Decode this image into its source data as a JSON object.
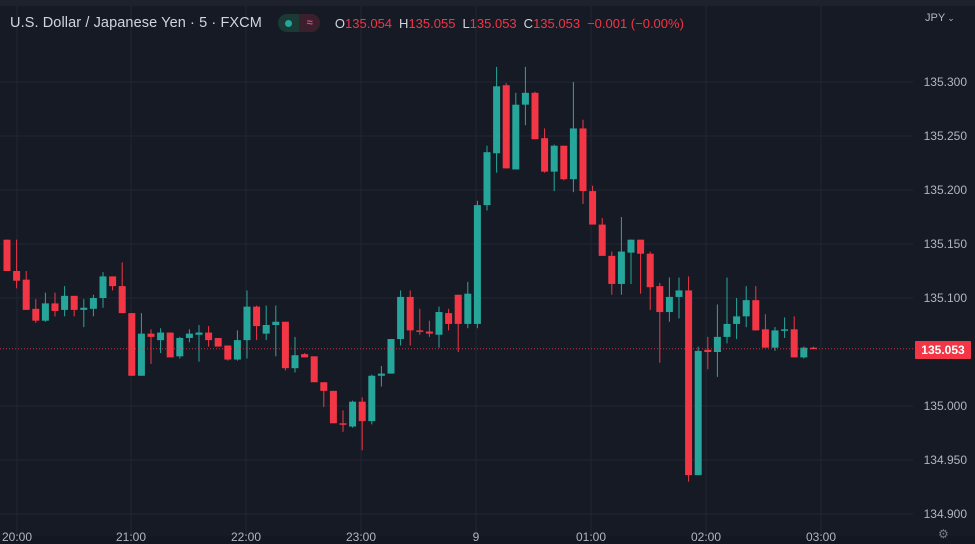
{
  "header": {
    "symbol_title": "U.S. Dollar / Japanese Yen · 5 · FXCM",
    "status_icons": [
      "market-open-dot-icon",
      "waves-icon"
    ],
    "ohlc": {
      "o_label": "O",
      "o_value": "135.054",
      "h_label": "H",
      "h_value": "135.055",
      "l_label": "L",
      "l_value": "135.053",
      "c_label": "C",
      "c_value": "135.053",
      "change": "−0.001 (−0.00%)"
    }
  },
  "price_axis": {
    "currency": "JPY",
    "currency_icon": "chevron-down-icon",
    "labels": [
      "135.300",
      "135.250",
      "135.200",
      "135.150",
      "135.100",
      "135.000",
      "134.950",
      "134.900"
    ],
    "last_price": "135.053"
  },
  "time_axis": {
    "labels": [
      "20:00",
      "21:00",
      "22:00",
      "23:00",
      "9",
      "01:00",
      "02:00",
      "03:00"
    ],
    "settings_icon": "gear-icon"
  },
  "colors": {
    "background": "#161a25",
    "grid": "#232632",
    "up": "#26a69a",
    "down": "#f23645",
    "text": "#b2b5be",
    "last_price_line": "#f23645"
  },
  "chart_data": {
    "type": "candlestick",
    "title": "U.S. Dollar / Japanese Yen · 5 · FXCM",
    "interval": "5",
    "xlabel": "",
    "ylabel": "JPY",
    "ylim": [
      134.895,
      135.375
    ],
    "yticks": [
      134.9,
      134.95,
      135.0,
      135.1,
      135.15,
      135.2,
      135.25,
      135.3
    ],
    "xticks": [
      "20:00",
      "21:00",
      "22:00",
      "23:00",
      "9",
      "01:00",
      "02:00",
      "03:00"
    ],
    "grid": true,
    "last_price": 135.053,
    "candles": [
      {
        "o": 135.154,
        "h": 135.154,
        "l": 135.125,
        "c": 135.125
      },
      {
        "o": 135.125,
        "h": 135.154,
        "l": 135.109,
        "c": 135.116
      },
      {
        "o": 135.117,
        "h": 135.125,
        "l": 135.089,
        "c": 135.089
      },
      {
        "o": 135.09,
        "h": 135.099,
        "l": 135.077,
        "c": 135.079
      },
      {
        "o": 135.079,
        "h": 135.105,
        "l": 135.078,
        "c": 135.095
      },
      {
        "o": 135.095,
        "h": 135.105,
        "l": 135.083,
        "c": 135.088
      },
      {
        "o": 135.089,
        "h": 135.111,
        "l": 135.083,
        "c": 135.102
      },
      {
        "o": 135.102,
        "h": 135.102,
        "l": 135.083,
        "c": 135.089
      },
      {
        "o": 135.089,
        "h": 135.099,
        "l": 135.073,
        "c": 135.091
      },
      {
        "o": 135.09,
        "h": 135.103,
        "l": 135.083,
        "c": 135.1
      },
      {
        "o": 135.1,
        "h": 135.124,
        "l": 135.091,
        "c": 135.12
      },
      {
        "o": 135.12,
        "h": 135.12,
        "l": 135.107,
        "c": 135.111
      },
      {
        "o": 135.111,
        "h": 135.133,
        "l": 135.086,
        "c": 135.086
      },
      {
        "o": 135.086,
        "h": 135.086,
        "l": 135.028,
        "c": 135.028
      },
      {
        "o": 135.028,
        "h": 135.086,
        "l": 135.028,
        "c": 135.067
      },
      {
        "o": 135.067,
        "h": 135.071,
        "l": 135.039,
        "c": 135.064
      },
      {
        "o": 135.061,
        "h": 135.072,
        "l": 135.049,
        "c": 135.068
      },
      {
        "o": 135.068,
        "h": 135.068,
        "l": 135.046,
        "c": 135.045
      },
      {
        "o": 135.046,
        "h": 135.064,
        "l": 135.044,
        "c": 135.063
      },
      {
        "o": 135.063,
        "h": 135.071,
        "l": 135.059,
        "c": 135.067
      },
      {
        "o": 135.066,
        "h": 135.075,
        "l": 135.041,
        "c": 135.068
      },
      {
        "o": 135.068,
        "h": 135.074,
        "l": 135.055,
        "c": 135.061
      },
      {
        "o": 135.063,
        "h": 135.063,
        "l": 135.055,
        "c": 135.055
      },
      {
        "o": 135.056,
        "h": 135.056,
        "l": 135.042,
        "c": 135.043
      },
      {
        "o": 135.043,
        "h": 135.07,
        "l": 135.042,
        "c": 135.061
      },
      {
        "o": 135.061,
        "h": 135.107,
        "l": 135.044,
        "c": 135.092
      },
      {
        "o": 135.092,
        "h": 135.093,
        "l": 135.061,
        "c": 135.074
      },
      {
        "o": 135.067,
        "h": 135.093,
        "l": 135.061,
        "c": 135.075
      },
      {
        "o": 135.075,
        "h": 135.093,
        "l": 135.046,
        "c": 135.078
      },
      {
        "o": 135.078,
        "h": 135.078,
        "l": 135.033,
        "c": 135.035
      },
      {
        "o": 135.035,
        "h": 135.064,
        "l": 135.031,
        "c": 135.047
      },
      {
        "o": 135.048,
        "h": 135.049,
        "l": 135.046,
        "c": 135.045
      },
      {
        "o": 135.046,
        "h": 135.046,
        "l": 135.022,
        "c": 135.022
      },
      {
        "o": 135.022,
        "h": 135.022,
        "l": 134.999,
        "c": 135.014
      },
      {
        "o": 135.014,
        "h": 135.014,
        "l": 134.984,
        "c": 134.984
      },
      {
        "o": 134.984,
        "h": 134.996,
        "l": 134.976,
        "c": 134.983
      },
      {
        "o": 134.981,
        "h": 135.005,
        "l": 134.98,
        "c": 135.004
      },
      {
        "o": 135.004,
        "h": 135.008,
        "l": 134.959,
        "c": 134.986
      },
      {
        "o": 134.986,
        "h": 135.029,
        "l": 134.983,
        "c": 135.028
      },
      {
        "o": 135.028,
        "h": 135.037,
        "l": 135.018,
        "c": 135.03
      },
      {
        "o": 135.03,
        "h": 135.062,
        "l": 135.03,
        "c": 135.062
      },
      {
        "o": 135.062,
        "h": 135.107,
        "l": 135.056,
        "c": 135.101
      },
      {
        "o": 135.101,
        "h": 135.107,
        "l": 135.056,
        "c": 135.07
      },
      {
        "o": 135.07,
        "h": 135.09,
        "l": 135.066,
        "c": 135.069
      },
      {
        "o": 135.069,
        "h": 135.079,
        "l": 135.064,
        "c": 135.067
      },
      {
        "o": 135.066,
        "h": 135.092,
        "l": 135.054,
        "c": 135.087
      },
      {
        "o": 135.086,
        "h": 135.09,
        "l": 135.07,
        "c": 135.076
      },
      {
        "o": 135.103,
        "h": 135.103,
        "l": 135.05,
        "c": 135.076
      },
      {
        "o": 135.076,
        "h": 135.115,
        "l": 135.072,
        "c": 135.104
      },
      {
        "o": 135.076,
        "h": 135.19,
        "l": 135.072,
        "c": 135.186
      },
      {
        "o": 135.186,
        "h": 135.241,
        "l": 135.181,
        "c": 135.235
      },
      {
        "o": 135.234,
        "h": 135.314,
        "l": 135.216,
        "c": 135.296
      },
      {
        "o": 135.297,
        "h": 135.299,
        "l": 135.22,
        "c": 135.22
      },
      {
        "o": 135.219,
        "h": 135.29,
        "l": 135.219,
        "c": 135.279
      },
      {
        "o": 135.279,
        "h": 135.314,
        "l": 135.26,
        "c": 135.29
      },
      {
        "o": 135.29,
        "h": 135.291,
        "l": 135.247,
        "c": 135.247
      },
      {
        "o": 135.248,
        "h": 135.257,
        "l": 135.216,
        "c": 135.217
      },
      {
        "o": 135.217,
        "h": 135.242,
        "l": 135.199,
        "c": 135.241
      },
      {
        "o": 135.241,
        "h": 135.241,
        "l": 135.209,
        "c": 135.21
      },
      {
        "o": 135.21,
        "h": 135.3,
        "l": 135.198,
        "c": 135.257
      },
      {
        "o": 135.257,
        "h": 135.265,
        "l": 135.187,
        "c": 135.199
      },
      {
        "o": 135.199,
        "h": 135.204,
        "l": 135.168,
        "c": 135.168
      },
      {
        "o": 135.168,
        "h": 135.174,
        "l": 135.14,
        "c": 135.139
      },
      {
        "o": 135.139,
        "h": 135.143,
        "l": 135.103,
        "c": 135.113
      },
      {
        "o": 135.113,
        "h": 135.175,
        "l": 135.103,
        "c": 135.143
      },
      {
        "o": 135.142,
        "h": 135.154,
        "l": 135.113,
        "c": 135.154
      },
      {
        "o": 135.154,
        "h": 135.154,
        "l": 135.104,
        "c": 135.141
      },
      {
        "o": 135.141,
        "h": 135.143,
        "l": 135.089,
        "c": 135.11
      },
      {
        "o": 135.111,
        "h": 135.114,
        "l": 135.04,
        "c": 135.087
      },
      {
        "o": 135.087,
        "h": 135.119,
        "l": 135.078,
        "c": 135.101
      },
      {
        "o": 135.101,
        "h": 135.119,
        "l": 135.081,
        "c": 135.107
      },
      {
        "o": 135.107,
        "h": 135.12,
        "l": 134.93,
        "c": 134.936
      },
      {
        "o": 134.936,
        "h": 135.055,
        "l": 134.936,
        "c": 135.051
      },
      {
        "o": 135.052,
        "h": 135.064,
        "l": 135.034,
        "c": 135.05
      },
      {
        "o": 135.05,
        "h": 135.094,
        "l": 135.027,
        "c": 135.064
      },
      {
        "o": 135.064,
        "h": 135.119,
        "l": 135.058,
        "c": 135.076
      },
      {
        "o": 135.076,
        "h": 135.1,
        "l": 135.062,
        "c": 135.083
      },
      {
        "o": 135.083,
        "h": 135.111,
        "l": 135.073,
        "c": 135.098
      },
      {
        "o": 135.098,
        "h": 135.111,
        "l": 135.07,
        "c": 135.07
      },
      {
        "o": 135.071,
        "h": 135.085,
        "l": 135.059,
        "c": 135.054
      },
      {
        "o": 135.054,
        "h": 135.073,
        "l": 135.051,
        "c": 135.07
      },
      {
        "o": 135.07,
        "h": 135.082,
        "l": 135.063,
        "c": 135.071
      },
      {
        "o": 135.071,
        "h": 135.083,
        "l": 135.045,
        "c": 135.045
      },
      {
        "o": 135.045,
        "h": 135.055,
        "l": 135.044,
        "c": 135.054
      },
      {
        "o": 135.054,
        "h": 135.055,
        "l": 135.053,
        "c": 135.053
      }
    ]
  }
}
